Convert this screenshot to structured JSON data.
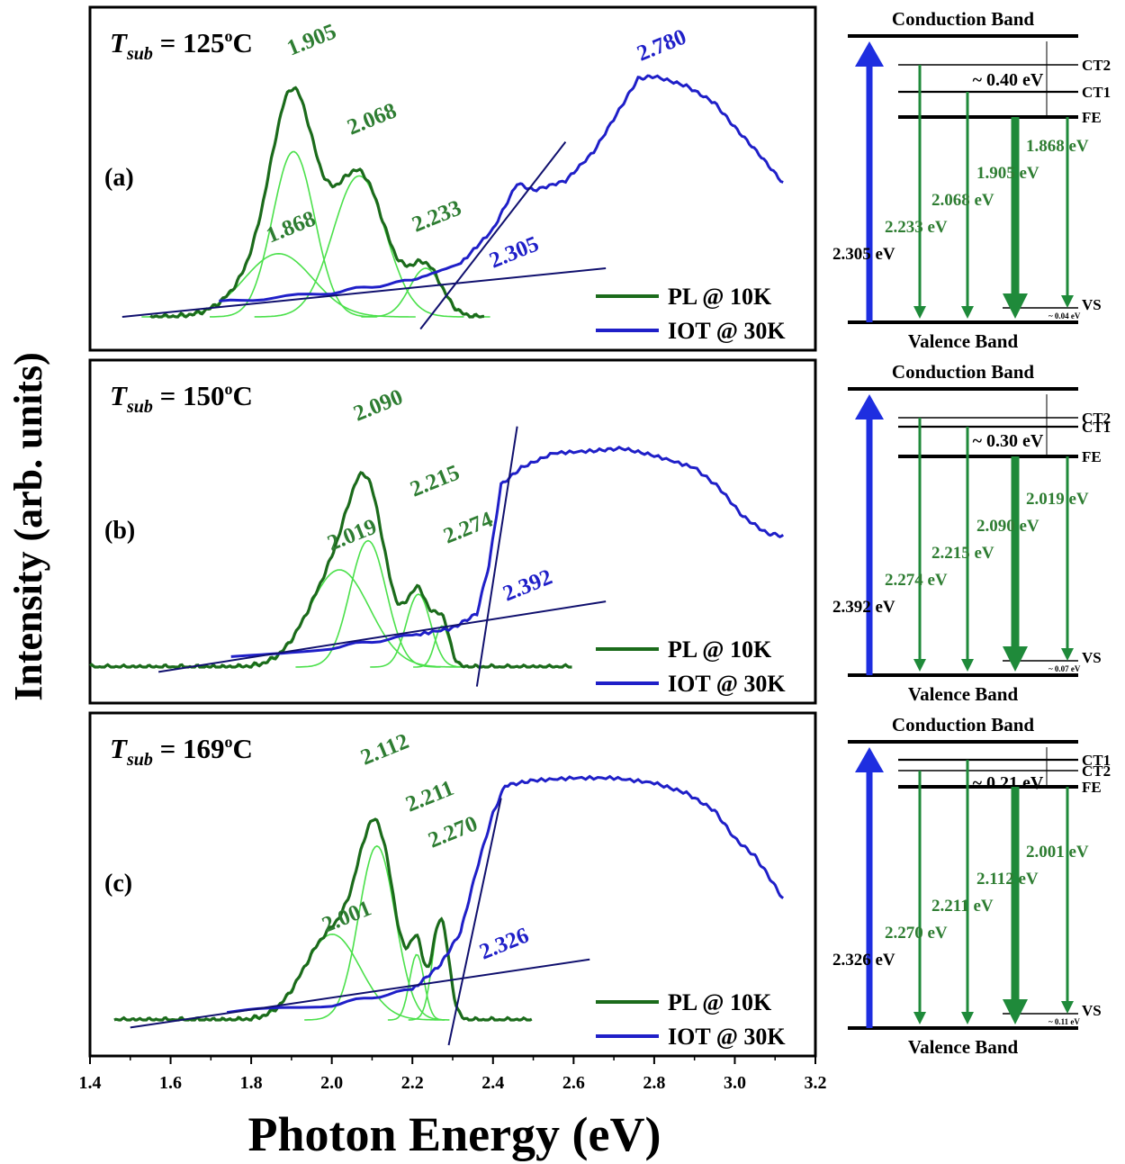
{
  "figure": {
    "ylabel": "Intensity (arb. units)",
    "xlabel": "Photon Energy (eV)",
    "x_ticks": [
      "1.4",
      "1.6",
      "1.8",
      "2.0",
      "2.2",
      "2.4",
      "2.6",
      "2.8",
      "3.0",
      "3.2"
    ],
    "legend": {
      "pl": "PL @ 10K",
      "iot": "IOT @ 30K"
    },
    "colors": {
      "pl": "#1b6b1b",
      "pl_text": "#2e7d32",
      "component": "#4be04b",
      "iot": "#1f1fc8",
      "fit": "#10106e",
      "axis": "#000000"
    }
  },
  "chart_data": [
    {
      "type": "line",
      "label": "(a)",
      "tsub": {
        "t": "T",
        "sub": "sub",
        "eq": " = 125",
        "deg": "o",
        "unit": "C"
      },
      "xlim": [
        1.4,
        3.2
      ],
      "pl_peak_energy": 1.905,
      "components": [
        {
          "center": 1.868,
          "label": "1.868",
          "amp": 0.26,
          "sigma": 0.085
        },
        {
          "center": 1.905,
          "label": "1.905",
          "amp": 0.68,
          "sigma": 0.052
        },
        {
          "center": 2.068,
          "label": "2.068",
          "amp": 0.58,
          "sigma": 0.065
        },
        {
          "center": 2.233,
          "label": "2.233",
          "amp": 0.2,
          "sigma": 0.04
        }
      ],
      "pl_range": [
        1.55,
        2.38
      ],
      "iot_points": [
        [
          1.72,
          0.06
        ],
        [
          2.0,
          0.1
        ],
        [
          2.2,
          0.15
        ],
        [
          2.32,
          0.22
        ],
        [
          2.4,
          0.36
        ],
        [
          2.46,
          0.55
        ],
        [
          2.5,
          0.52
        ],
        [
          2.58,
          0.56
        ],
        [
          2.65,
          0.68
        ],
        [
          2.72,
          0.87
        ],
        [
          2.76,
          0.98
        ],
        [
          2.8,
          0.99
        ],
        [
          2.88,
          0.95
        ],
        [
          2.95,
          0.88
        ],
        [
          3.0,
          0.78
        ],
        [
          3.06,
          0.67
        ],
        [
          3.12,
          0.55
        ]
      ],
      "fit_lines": [
        [
          [
            1.48,
            0.0
          ],
          [
            2.68,
            0.2
          ]
        ],
        [
          [
            2.22,
            -0.05
          ],
          [
            2.58,
            0.72
          ]
        ]
      ],
      "iot_intercept": "2.305",
      "iot_peak": "2.780",
      "band_diagram": {
        "conduction": "Conduction Band",
        "valence": "Valence Band",
        "levels": [
          "CT2",
          "CT1",
          "FE",
          "VS"
        ],
        "gap_label": "~ 0.40 eV",
        "vs_gap": "~ 0.04 eV",
        "excitation": "2.305 eV",
        "transitions": [
          "2.233 eV",
          "2.068 eV",
          "1.905 eV",
          "1.868 eV"
        ]
      }
    },
    {
      "type": "line",
      "label": "(b)",
      "tsub": {
        "t": "T",
        "sub": "sub",
        "eq": " = 150",
        "deg": "o",
        "unit": "C"
      },
      "xlim": [
        1.4,
        3.2
      ],
      "pl_peak_energy": 2.09,
      "components": [
        {
          "center": 2.019,
          "label": "2.019",
          "amp": 0.4,
          "sigma": 0.075
        },
        {
          "center": 2.09,
          "label": "2.090",
          "amp": 0.52,
          "sigma": 0.045
        },
        {
          "center": 2.215,
          "label": "2.215",
          "amp": 0.3,
          "sigma": 0.03
        },
        {
          "center": 2.274,
          "label": "2.274",
          "amp": 0.17,
          "sigma": 0.018
        }
      ],
      "pl_range": [
        1.4,
        2.6
      ],
      "iot_points": [
        [
          1.75,
          0.04
        ],
        [
          2.0,
          0.08
        ],
        [
          2.2,
          0.13
        ],
        [
          2.3,
          0.16
        ],
        [
          2.36,
          0.22
        ],
        [
          2.39,
          0.42
        ],
        [
          2.42,
          0.75
        ],
        [
          2.47,
          0.82
        ],
        [
          2.55,
          0.88
        ],
        [
          2.65,
          0.89
        ],
        [
          2.72,
          0.9
        ],
        [
          2.8,
          0.87
        ],
        [
          2.9,
          0.82
        ],
        [
          2.96,
          0.74
        ],
        [
          3.02,
          0.62
        ],
        [
          3.08,
          0.55
        ],
        [
          3.12,
          0.54
        ]
      ],
      "fit_lines": [
        [
          [
            1.57,
            -0.02
          ],
          [
            2.68,
            0.27
          ]
        ],
        [
          [
            2.36,
            -0.08
          ],
          [
            2.46,
            0.99
          ]
        ]
      ],
      "iot_intercept": "2.392",
      "iot_peak": null,
      "band_diagram": {
        "conduction": "Conduction Band",
        "valence": "Valence Band",
        "levels": [
          "CT2",
          "CT1",
          "FE",
          "VS"
        ],
        "gap_label": "~ 0.30 eV",
        "vs_gap": "~ 0.07 eV",
        "excitation": "2.392 eV",
        "transitions": [
          "2.274 eV",
          "2.215 eV",
          "2.090 eV",
          "2.019 eV"
        ]
      }
    },
    {
      "type": "line",
      "label": "(c)",
      "tsub": {
        "t": "T",
        "sub": "sub",
        "eq": " = 169",
        "deg": "o",
        "unit": "C"
      },
      "xlim": [
        1.4,
        3.2
      ],
      "pl_peak_energy": 2.112,
      "components": [
        {
          "center": 2.001,
          "label": "2.001",
          "amp": 0.34,
          "sigma": 0.07
        },
        {
          "center": 2.112,
          "label": "2.112",
          "amp": 0.69,
          "sigma": 0.045
        },
        {
          "center": 2.211,
          "label": "2.211",
          "amp": 0.26,
          "sigma": 0.018
        },
        {
          "center": 2.27,
          "label": "2.270",
          "amp": 0.4,
          "sigma": 0.02
        }
      ],
      "pl_range": [
        1.46,
        2.5
      ],
      "iot_points": [
        [
          1.74,
          0.03
        ],
        [
          2.0,
          0.06
        ],
        [
          2.2,
          0.12
        ],
        [
          2.27,
          0.22
        ],
        [
          2.32,
          0.35
        ],
        [
          2.36,
          0.6
        ],
        [
          2.4,
          0.82
        ],
        [
          2.43,
          0.93
        ],
        [
          2.5,
          0.95
        ],
        [
          2.6,
          0.96
        ],
        [
          2.7,
          0.96
        ],
        [
          2.8,
          0.94
        ],
        [
          2.88,
          0.9
        ],
        [
          2.95,
          0.83
        ],
        [
          3.0,
          0.72
        ],
        [
          3.05,
          0.65
        ],
        [
          3.08,
          0.58
        ],
        [
          3.12,
          0.48
        ]
      ],
      "fit_lines": [
        [
          [
            1.5,
            -0.03
          ],
          [
            2.64,
            0.24
          ]
        ],
        [
          [
            2.29,
            -0.1
          ],
          [
            2.42,
            0.88
          ]
        ]
      ],
      "iot_intercept": "2.326",
      "iot_peak": null,
      "band_diagram": {
        "conduction": "Conduction Band",
        "valence": "Valence Band",
        "levels": [
          "CT2",
          "CT1",
          "FE",
          "VS"
        ],
        "gap_label": "~ 0.21 eV",
        "vs_gap": "~ 0.11 eV",
        "excitation": "2.326 eV",
        "transitions": [
          "2.270 eV",
          "2.211 eV",
          "2.112 eV",
          "2.001 eV"
        ]
      }
    }
  ]
}
